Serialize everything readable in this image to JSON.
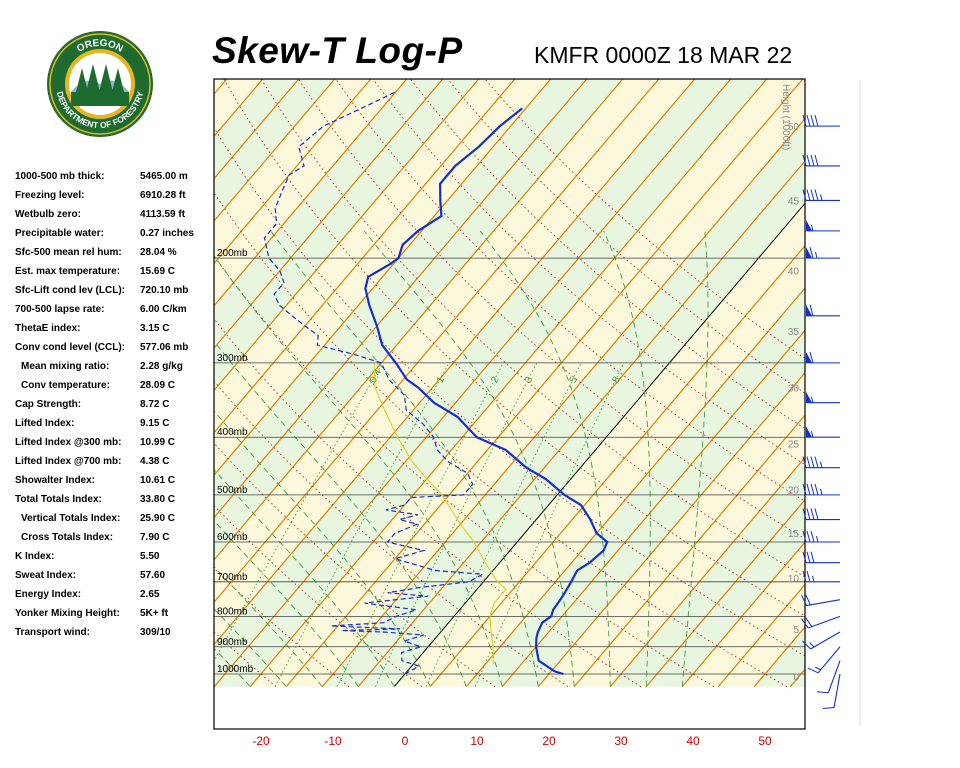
{
  "header": {
    "title": "Skew-T Log-P",
    "station_time": "KMFR 0000Z 18 MAR 22"
  },
  "logo": {
    "text_top": "OREGON",
    "text_bottom": "DEPARTMENT OF FORESTRY",
    "ring_color": "#1e6b2f",
    "inner_color": "#e8b520"
  },
  "indices": [
    {
      "label": "1000-500 mb thick:",
      "value": "5465.00 m",
      "indent": false
    },
    {
      "label": "Freezing level:",
      "value": "6910.28 ft",
      "indent": false
    },
    {
      "label": "Wetbulb zero:",
      "value": "4113.59 ft",
      "indent": false
    },
    {
      "label": "Precipitable water:",
      "value": "0.27 inches",
      "indent": false
    },
    {
      "label": "Sfc-500 mean rel hum:",
      "value": "28.04 %",
      "indent": false
    },
    {
      "label": "Est. max temperature:",
      "value": "15.69 C",
      "indent": false
    },
    {
      "label": "Sfc-Lift cond lev (LCL):",
      "value": "720.10 mb",
      "indent": false
    },
    {
      "label": "700-500 lapse rate:",
      "value": "6.00 C/km",
      "indent": false
    },
    {
      "label": "ThetaE index:",
      "value": "3.15 C",
      "indent": false
    },
    {
      "label": "Conv cond level (CCL):",
      "value": "577.06 mb",
      "indent": false
    },
    {
      "label": "Mean mixing ratio:",
      "value": "2.28 g/kg",
      "indent": true
    },
    {
      "label": "Conv temperature:",
      "value": "28.09 C",
      "indent": true
    },
    {
      "label": "Cap Strength:",
      "value": "8.72 C",
      "indent": false
    },
    {
      "label": "Lifted Index:",
      "value": "9.15 C",
      "indent": false
    },
    {
      "label": "Lifted Index @300 mb:",
      "value": "10.99 C",
      "indent": false
    },
    {
      "label": "Lifted Index @700 mb:",
      "value": "4.38 C",
      "indent": false
    },
    {
      "label": "Showalter Index:",
      "value": "10.61 C",
      "indent": false
    },
    {
      "label": "Total Totals Index:",
      "value": "33.80 C",
      "indent": false
    },
    {
      "label": "Vertical Totals Index:",
      "value": "25.90 C",
      "indent": true
    },
    {
      "label": "Cross Totals Index:",
      "value": "7.90 C",
      "indent": true
    },
    {
      "label": "K Index:",
      "value": "5.50",
      "indent": false
    },
    {
      "label": "Sweat Index:",
      "value": "57.60",
      "indent": false
    },
    {
      "label": "Energy Index:",
      "value": "2.65",
      "indent": false
    },
    {
      "label": "Yonker Mixing Height:",
      "value": "5K+ ft",
      "indent": false
    },
    {
      "label": "Transport wind:",
      "value": "309/10",
      "indent": false
    }
  ],
  "chart_data": {
    "type": "line",
    "title": "Skew-T Log-P",
    "xlabel": "",
    "ylabel": "",
    "x_ticks": [
      "-20",
      "-10",
      "0",
      "10",
      "20",
      "30",
      "40",
      "50"
    ],
    "x_tick_values": [
      -20,
      -10,
      0,
      10,
      20,
      30,
      40,
      50
    ],
    "pressure_labels": [
      "200mb",
      "300mb",
      "400mb",
      "500mb",
      "600mb",
      "700mb",
      "800mb",
      "900mb",
      "1000mb"
    ],
    "pressure_levels": [
      200,
      300,
      400,
      500,
      600,
      700,
      800,
      900,
      1000
    ],
    "height_title": "Height (1000ft)",
    "height_ticks": [
      "50",
      "45",
      "40",
      "35",
      "30",
      "25",
      "20",
      "15",
      "10",
      "5",
      "0"
    ],
    "height_levels_mb": [
      120,
      160,
      210,
      265,
      330,
      410,
      490,
      580,
      690,
      840,
      1010
    ],
    "mixing_ratio_labels": [
      "0.4",
      "1",
      "2",
      "3",
      "5",
      "8"
    ],
    "mixing_ratio_values": [
      0.4,
      1,
      2,
      3,
      5,
      8
    ],
    "colors": {
      "temperature": "#1030d0",
      "dewpoint": "#1030d0",
      "parcel": "#e0d020",
      "isotherm": "#e08000",
      "dry_adiabat": "#c02020",
      "moist_adiabat": "#40a040",
      "mixing_ratio": "#40a040",
      "isobar": "#404040",
      "x_tick": "#cc0000",
      "band_green": "#e8f6e0",
      "band_yellow": "#fbf8dc",
      "wind": "#1030d0"
    },
    "grid": true,
    "series": [
      {
        "id": "temperature",
        "style": "solid",
        "points": [
          [
            22.0,
            1000
          ],
          [
            20.5,
            990
          ],
          [
            17,
            950
          ],
          [
            15,
            900
          ],
          [
            14,
            870
          ],
          [
            13.5,
            850
          ],
          [
            13,
            820
          ],
          [
            13.5,
            800
          ],
          [
            13,
            780
          ],
          [
            12.8,
            750
          ],
          [
            12.6,
            730
          ],
          [
            12.2,
            700
          ],
          [
            11.7,
            670
          ],
          [
            12.5,
            650
          ],
          [
            13,
            620
          ],
          [
            12.5,
            600
          ],
          [
            10,
            580
          ],
          [
            7.5,
            550
          ],
          [
            4.5,
            520
          ],
          [
            1.0,
            500
          ],
          [
            -3.5,
            470
          ],
          [
            -7.5,
            450
          ],
          [
            -12.5,
            420
          ],
          [
            -18,
            400
          ],
          [
            -23,
            370
          ],
          [
            -28,
            350
          ],
          [
            -32,
            330
          ],
          [
            -34.5,
            320
          ],
          [
            -38,
            300
          ],
          [
            -42,
            280
          ],
          [
            -45,
            260
          ],
          [
            -48.5,
            240
          ],
          [
            -51,
            225
          ],
          [
            -52,
            215
          ],
          [
            -50.5,
            205
          ],
          [
            -50,
            200
          ],
          [
            -51,
            190
          ],
          [
            -50.5,
            180
          ],
          [
            -49,
            170
          ],
          [
            -51,
            160
          ],
          [
            -53,
            150
          ],
          [
            -53,
            140
          ],
          [
            -52,
            130
          ],
          [
            -51.5,
            120
          ],
          [
            -50.5,
            112
          ]
        ]
      },
      {
        "id": "dewpoint",
        "style": "dashed",
        "points": [
          [
            0,
            1000
          ],
          [
            1,
            970
          ],
          [
            -2,
            950
          ],
          [
            -3,
            920
          ],
          [
            -1,
            900
          ],
          [
            -4,
            880
          ],
          [
            -2,
            860
          ],
          [
            -8,
            850
          ],
          [
            -14,
            845
          ],
          [
            -6,
            840
          ],
          [
            -16,
            830
          ],
          [
            -9,
            820
          ],
          [
            -8,
            800
          ],
          [
            -6,
            780
          ],
          [
            -14,
            760
          ],
          [
            -6,
            740
          ],
          [
            -12,
            730
          ],
          [
            -8,
            715
          ],
          [
            -2,
            700
          ],
          [
            -1,
            680
          ],
          [
            -8,
            670
          ],
          [
            -15,
            640
          ],
          [
            -12,
            620
          ],
          [
            -18,
            600
          ],
          [
            -18,
            580
          ],
          [
            -16,
            560
          ],
          [
            -19,
            550
          ],
          [
            -17,
            540
          ],
          [
            -22,
            530
          ],
          [
            -20,
            520
          ],
          [
            -20,
            505
          ],
          [
            -13,
            500
          ],
          [
            -13,
            480
          ],
          [
            -15,
            460
          ],
          [
            -19,
            440
          ],
          [
            -22,
            420
          ],
          [
            -24,
            400
          ],
          [
            -27,
            380
          ],
          [
            -31,
            360
          ],
          [
            -33,
            340
          ],
          [
            -37,
            320
          ],
          [
            -40,
            300
          ],
          [
            -45,
            290
          ],
          [
            -51,
            280
          ],
          [
            -52,
            270
          ],
          [
            -55,
            260
          ],
          [
            -58,
            250
          ],
          [
            -61,
            240
          ],
          [
            -63,
            230
          ],
          [
            -63,
            220
          ],
          [
            -65,
            210
          ],
          [
            -68,
            200
          ],
          [
            -71,
            185
          ],
          [
            -71,
            175
          ],
          [
            -73,
            165
          ],
          [
            -74,
            155
          ],
          [
            -75,
            145
          ],
          [
            -74,
            140
          ],
          [
            -77,
            130
          ],
          [
            -76,
            120
          ],
          [
            -72,
            110
          ],
          [
            -70,
            105
          ]
        ]
      },
      {
        "id": "parcel",
        "style": "solid",
        "points": [
          [
            11,
            960
          ],
          [
            9,
            900
          ],
          [
            7,
            850
          ],
          [
            5,
            800
          ],
          [
            4,
            760
          ],
          [
            4,
            720
          ],
          [
            2,
            700
          ],
          [
            -2,
            650
          ],
          [
            -6,
            600
          ],
          [
            -10,
            560
          ],
          [
            -16,
            500
          ],
          [
            -20,
            470
          ],
          [
            -24,
            440
          ],
          [
            -29,
            400
          ],
          [
            -34,
            360
          ],
          [
            -38,
            330
          ],
          [
            -41,
            300
          ]
        ]
      }
    ],
    "wind_barbs": [
      {
        "pressure": 1000,
        "direction": 190,
        "speed_kt": 10
      },
      {
        "pressure": 950,
        "direction": 200,
        "speed_kt": 10
      },
      {
        "pressure": 900,
        "direction": 220,
        "speed_kt": 15
      },
      {
        "pressure": 850,
        "direction": 240,
        "speed_kt": 15
      },
      {
        "pressure": 800,
        "direction": 250,
        "speed_kt": 20
      },
      {
        "pressure": 750,
        "direction": 260,
        "speed_kt": 20
      },
      {
        "pressure": 700,
        "direction": 270,
        "speed_kt": 25
      },
      {
        "pressure": 650,
        "direction": 270,
        "speed_kt": 30
      },
      {
        "pressure": 600,
        "direction": 270,
        "speed_kt": 35
      },
      {
        "pressure": 550,
        "direction": 270,
        "speed_kt": 40
      },
      {
        "pressure": 500,
        "direction": 270,
        "speed_kt": 45
      },
      {
        "pressure": 450,
        "direction": 270,
        "speed_kt": 45
      },
      {
        "pressure": 400,
        "direction": 270,
        "speed_kt": 55
      },
      {
        "pressure": 350,
        "direction": 270,
        "speed_kt": 55
      },
      {
        "pressure": 300,
        "direction": 270,
        "speed_kt": 60
      },
      {
        "pressure": 250,
        "direction": 270,
        "speed_kt": 60
      },
      {
        "pressure": 200,
        "direction": 270,
        "speed_kt": 65
      },
      {
        "pressure": 180,
        "direction": 270,
        "speed_kt": 55
      },
      {
        "pressure": 160,
        "direction": 270,
        "speed_kt": 45
      },
      {
        "pressure": 140,
        "direction": 270,
        "speed_kt": 40
      },
      {
        "pressure": 120,
        "direction": 270,
        "speed_kt": 40
      }
    ]
  }
}
